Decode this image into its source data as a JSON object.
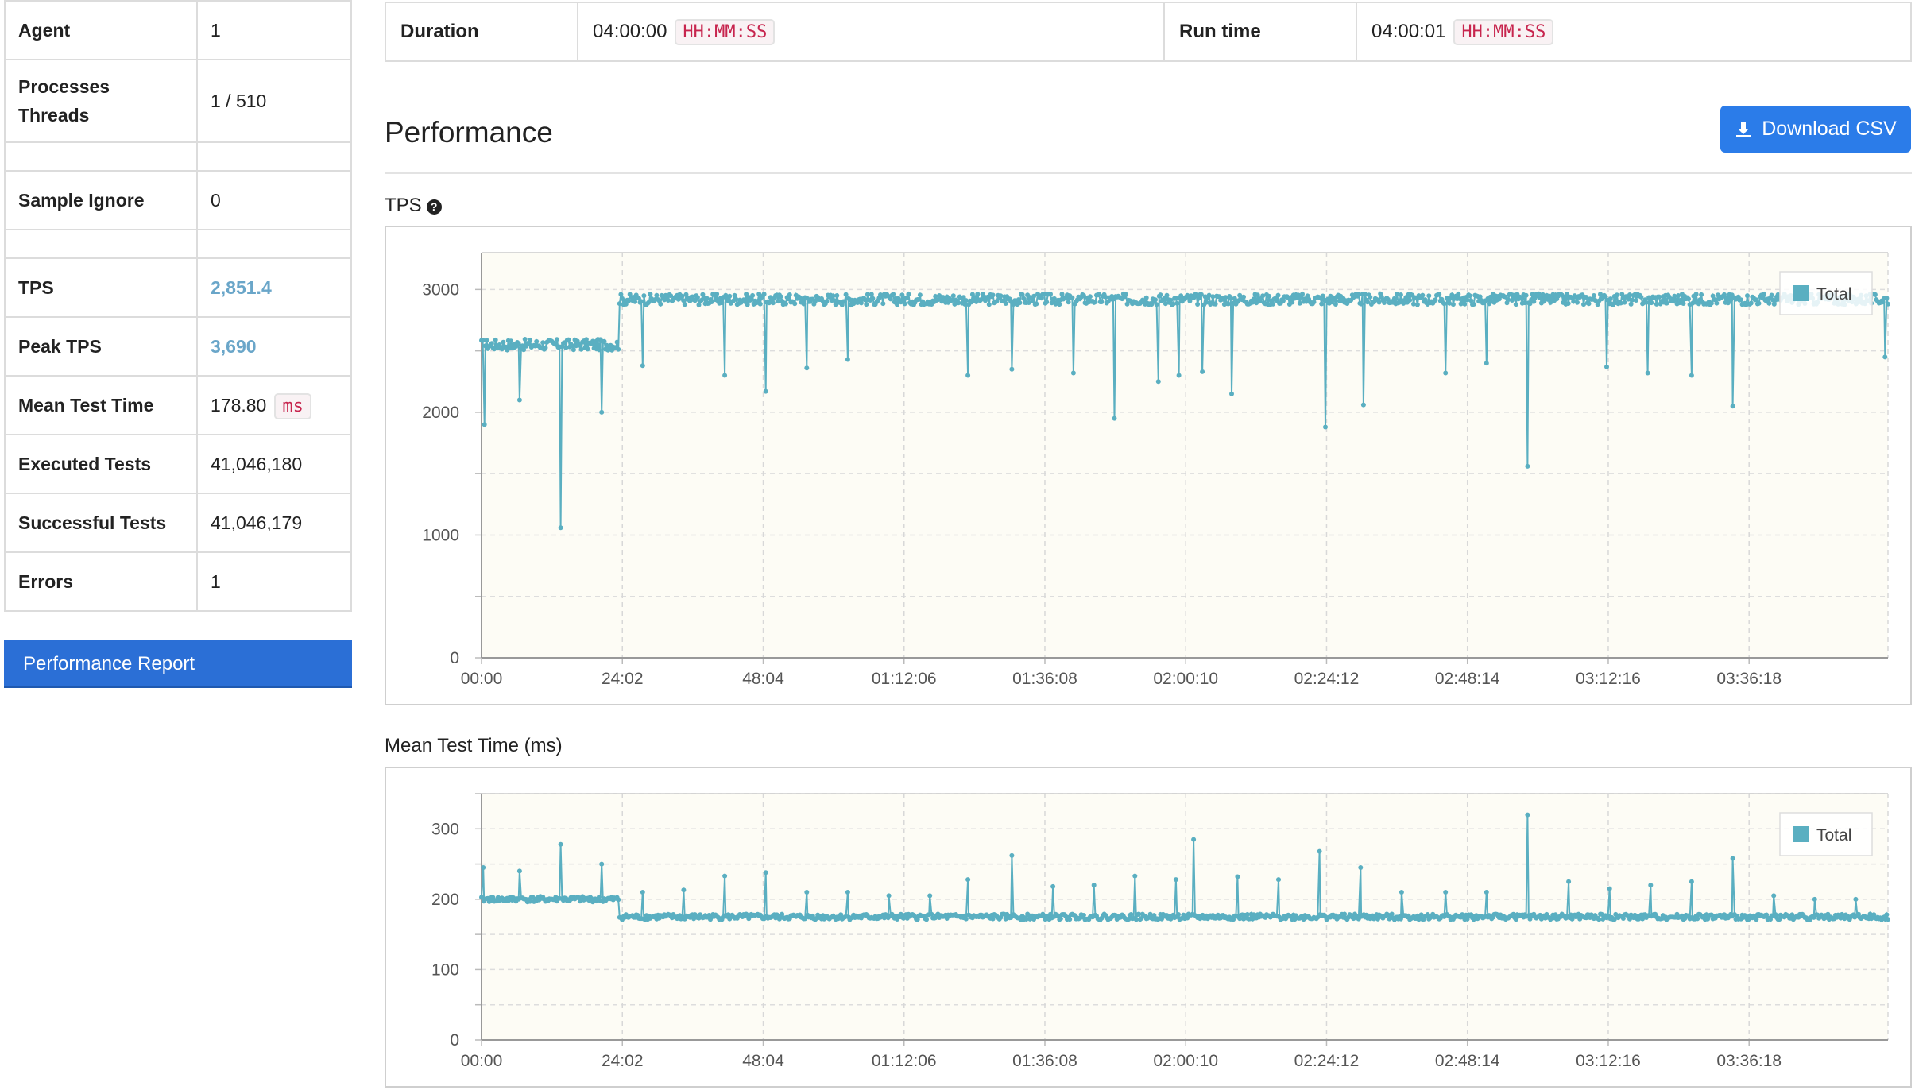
{
  "summary": {
    "rows": [
      {
        "label": "Agent",
        "value": "1"
      },
      {
        "label": "Processes\nThreads",
        "value": "1 / 510"
      },
      {
        "label": "Sample Ignore",
        "value": "0"
      },
      {
        "label": "TPS",
        "value": "2,851.4"
      },
      {
        "label": "Peak TPS",
        "value": "3,690"
      },
      {
        "label": "Mean Test Time",
        "value": "178.80",
        "unit": "ms"
      },
      {
        "label": "Executed Tests",
        "value": "41,046,180"
      },
      {
        "label": "Successful Tests",
        "value": "41,046,179"
      },
      {
        "label": "Errors",
        "value": "1"
      }
    ],
    "report_button": "Performance Report"
  },
  "timing": {
    "duration_label": "Duration",
    "duration_value": "04:00:00",
    "duration_format": "HH:MM:SS",
    "runtime_label": "Run time",
    "runtime_value": "04:00:01",
    "runtime_format": "HH:MM:SS"
  },
  "performance": {
    "title": "Performance",
    "download_button": "Download CSV",
    "download_icon": "download-icon"
  },
  "colors": {
    "series": "#5aafc1",
    "plot_bg": "#fdfcf5",
    "accent_button": "#2b7ce9",
    "report_button": "#2b6fd6",
    "highlight_value": "#6aa6c9"
  },
  "chart_data": [
    {
      "type": "line",
      "title": "TPS",
      "help_icon": "question-circle-icon",
      "x_ticks": [
        "00:00",
        "24:02",
        "48:04",
        "01:12:06",
        "01:36:08",
        "02:00:10",
        "02:24:12",
        "02:48:14",
        "03:12:16",
        "03:36:18"
      ],
      "y_ticks": [
        "0",
        "1000",
        "2000",
        "3000"
      ],
      "ylim": [
        0,
        3300
      ],
      "x_range_minutes": [
        0,
        240
      ],
      "grid": true,
      "legend": "top-right",
      "series": [
        {
          "name": "Total",
          "baseline_segments": [
            {
              "x_start": 0,
              "x_end": 23.5,
              "y": 2550
            },
            {
              "x_start": 23.5,
              "x_end": 240,
              "y": 2920
            }
          ],
          "dips": [
            [
              0.5,
              1900
            ],
            [
              6.5,
              2100
            ],
            [
              13.5,
              1060
            ],
            [
              20.5,
              2000
            ],
            [
              27.5,
              2380
            ],
            [
              41.5,
              2300
            ],
            [
              48.5,
              2170
            ],
            [
              55.5,
              2360
            ],
            [
              62.5,
              2430
            ],
            [
              83,
              2300
            ],
            [
              90.5,
              2350
            ],
            [
              101,
              2320
            ],
            [
              108,
              1950
            ],
            [
              115.5,
              2250
            ],
            [
              119,
              2300
            ],
            [
              123,
              2330
            ],
            [
              128,
              2150
            ],
            [
              144,
              1880
            ],
            [
              150.5,
              2060
            ],
            [
              164.5,
              2320
            ],
            [
              171.5,
              2400
            ],
            [
              178.5,
              1560
            ],
            [
              192,
              2370
            ],
            [
              199,
              2320
            ],
            [
              206.5,
              2300
            ],
            [
              213.5,
              2050
            ],
            [
              239.5,
              2450
            ]
          ]
        }
      ]
    },
    {
      "type": "line",
      "title": "Mean Test Time (ms)",
      "x_ticks": [
        "00:00",
        "24:02",
        "48:04",
        "01:12:06",
        "01:36:08",
        "02:00:10",
        "02:24:12",
        "02:48:14",
        "03:12:16",
        "03:36:18"
      ],
      "y_ticks": [
        "0",
        "100",
        "200",
        "300"
      ],
      "ylim": [
        0,
        350
      ],
      "x_range_minutes": [
        0,
        240
      ],
      "grid": true,
      "legend": "top-right",
      "series": [
        {
          "name": "Total",
          "baseline_segments": [
            {
              "x_start": 0,
              "x_end": 23.5,
              "y": 200
            },
            {
              "x_start": 23.5,
              "x_end": 240,
              "y": 175
            }
          ],
          "spikes": [
            [
              0.3,
              245
            ],
            [
              6.5,
              240
            ],
            [
              13.5,
              278
            ],
            [
              20.5,
              250
            ],
            [
              27.5,
              210
            ],
            [
              34.5,
              213
            ],
            [
              41.5,
              233
            ],
            [
              48.5,
              238
            ],
            [
              55.5,
              210
            ],
            [
              62.5,
              210
            ],
            [
              69.5,
              205
            ],
            [
              76.5,
              205
            ],
            [
              83,
              228
            ],
            [
              90.5,
              262
            ],
            [
              97.5,
              218
            ],
            [
              104.5,
              220
            ],
            [
              111.5,
              233
            ],
            [
              118.5,
              228
            ],
            [
              121.5,
              285
            ],
            [
              129,
              232
            ],
            [
              136,
              228
            ],
            [
              143,
              268
            ],
            [
              150,
              245
            ],
            [
              157,
              210
            ],
            [
              164.5,
              210
            ],
            [
              171.5,
              210
            ],
            [
              178.5,
              320
            ],
            [
              185.5,
              225
            ],
            [
              192.5,
              215
            ],
            [
              199.5,
              220
            ],
            [
              206.5,
              225
            ],
            [
              213.5,
              258
            ],
            [
              220.5,
              205
            ],
            [
              227.5,
              200
            ],
            [
              234.5,
              200
            ]
          ]
        }
      ]
    }
  ]
}
